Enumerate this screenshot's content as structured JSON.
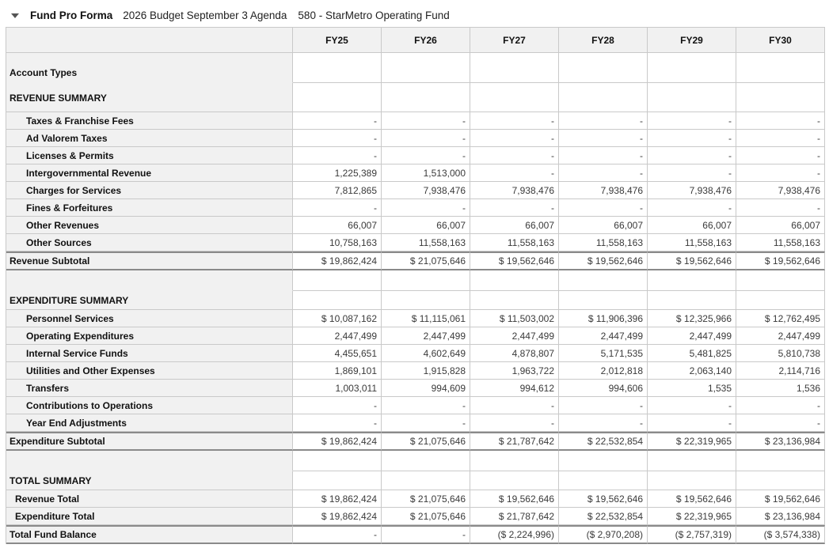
{
  "header": {
    "title": "Fund Pro Forma",
    "subtitle_budget": "2026 Budget September 3 Agenda",
    "subtitle_fund": "580 - StarMetro Operating Fund",
    "collapse_icon": "triangle-down-icon"
  },
  "colors": {
    "label_bg": "#f1f1f1",
    "grid_line": "#c9c9c9",
    "heavy_line": "#8a8a8a",
    "label_text": "#111111",
    "value_text": "#3a3a3a"
  },
  "table": {
    "columns": [
      "FY25",
      "FY26",
      "FY27",
      "FY28",
      "FY29",
      "FY30"
    ],
    "rows": [
      {
        "type": "tall-label",
        "label": "Account Types",
        "values": [
          "",
          "",
          "",
          "",
          "",
          ""
        ]
      },
      {
        "type": "section-tall",
        "label": "REVENUE SUMMARY",
        "values": [
          "",
          "",
          "",
          "",
          "",
          ""
        ]
      },
      {
        "type": "item",
        "label": "Taxes & Franchise Fees",
        "values": [
          "-",
          "-",
          "-",
          "-",
          "-",
          "-"
        ]
      },
      {
        "type": "item",
        "label": "Ad Valorem Taxes",
        "values": [
          "-",
          "-",
          "-",
          "-",
          "-",
          "-"
        ]
      },
      {
        "type": "item",
        "label": "Licenses & Permits",
        "values": [
          "-",
          "-",
          "-",
          "-",
          "-",
          "-"
        ]
      },
      {
        "type": "item",
        "label": "Intergovernmental Revenue",
        "values": [
          "1,225,389",
          "1,513,000",
          "-",
          "-",
          "-",
          "-"
        ]
      },
      {
        "type": "item",
        "label": "Charges for Services",
        "values": [
          "7,812,865",
          "7,938,476",
          "7,938,476",
          "7,938,476",
          "7,938,476",
          "7,938,476"
        ]
      },
      {
        "type": "item",
        "label": "Fines & Forfeitures",
        "values": [
          "-",
          "-",
          "-",
          "-",
          "-",
          "-"
        ]
      },
      {
        "type": "item",
        "label": "Other Revenues",
        "values": [
          "66,007",
          "66,007",
          "66,007",
          "66,007",
          "66,007",
          "66,007"
        ]
      },
      {
        "type": "item",
        "label": "Other Sources",
        "values": [
          "10,758,163",
          "11,558,163",
          "11,558,163",
          "11,558,163",
          "11,558,163",
          "11,558,163"
        ]
      },
      {
        "type": "subtotal",
        "label": "Revenue Subtotal",
        "values": [
          "$ 19,862,424",
          "$ 21,075,646",
          "$ 19,562,646",
          "$ 19,562,646",
          "$ 19,562,646",
          "$ 19,562,646"
        ]
      },
      {
        "type": "spacer",
        "label": "",
        "values": [
          "",
          "",
          "",
          "",
          "",
          ""
        ]
      },
      {
        "type": "section",
        "label": "EXPENDITURE SUMMARY",
        "values": [
          "",
          "",
          "",
          "",
          "",
          ""
        ]
      },
      {
        "type": "item",
        "label": "Personnel Services",
        "values": [
          "$ 10,087,162",
          "$ 11,115,061",
          "$ 11,503,002",
          "$ 11,906,396",
          "$ 12,325,966",
          "$ 12,762,495"
        ]
      },
      {
        "type": "item",
        "label": "Operating Expenditures",
        "values": [
          "2,447,499",
          "2,447,499",
          "2,447,499",
          "2,447,499",
          "2,447,499",
          "2,447,499"
        ]
      },
      {
        "type": "item",
        "label": "Internal Service Funds",
        "values": [
          "4,455,651",
          "4,602,649",
          "4,878,807",
          "5,171,535",
          "5,481,825",
          "5,810,738"
        ]
      },
      {
        "type": "item",
        "label": "Utilities and Other Expenses",
        "values": [
          "1,869,101",
          "1,915,828",
          "1,963,722",
          "2,012,818",
          "2,063,140",
          "2,114,716"
        ]
      },
      {
        "type": "item",
        "label": "Transfers",
        "values": [
          "1,003,011",
          "994,609",
          "994,612",
          "994,606",
          "1,535",
          "1,536"
        ]
      },
      {
        "type": "item",
        "label": "Contributions to Operations",
        "values": [
          "-",
          "-",
          "-",
          "-",
          "-",
          "-"
        ]
      },
      {
        "type": "item",
        "label": "Year End Adjustments",
        "values": [
          "-",
          "-",
          "-",
          "-",
          "-",
          "-"
        ]
      },
      {
        "type": "subtotal",
        "label": "Expenditure Subtotal",
        "values": [
          "$ 19,862,424",
          "$ 21,075,646",
          "$ 21,787,642",
          "$ 22,532,854",
          "$ 22,319,965",
          "$ 23,136,984"
        ]
      },
      {
        "type": "spacer",
        "label": "",
        "values": [
          "",
          "",
          "",
          "",
          "",
          ""
        ]
      },
      {
        "type": "section",
        "label": "TOTAL SUMMARY",
        "values": [
          "",
          "",
          "",
          "",
          "",
          ""
        ]
      },
      {
        "type": "total-item",
        "label": "Revenue Total",
        "values": [
          "$ 19,862,424",
          "$ 21,075,646",
          "$ 19,562,646",
          "$ 19,562,646",
          "$ 19,562,646",
          "$ 19,562,646"
        ]
      },
      {
        "type": "total-item",
        "label": "Expenditure Total",
        "values": [
          "$ 19,862,424",
          "$ 21,075,646",
          "$ 21,787,642",
          "$ 22,532,854",
          "$ 22,319,965",
          "$ 23,136,984"
        ]
      },
      {
        "type": "subtotal",
        "label": "Total Fund Balance",
        "values": [
          "-",
          "-",
          "($ 2,224,996)",
          "($ 2,970,208)",
          "($ 2,757,319)",
          "($ 3,574,338)"
        ]
      }
    ]
  }
}
